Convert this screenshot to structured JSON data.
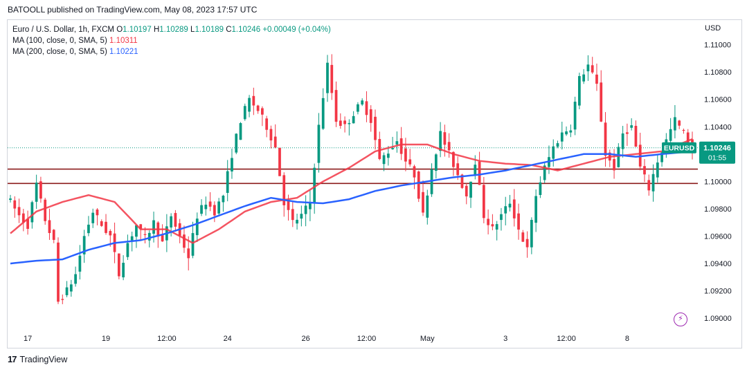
{
  "header": {
    "published_line": "BATOOLL published on TradingView.com, May 08, 2023 17:57 UTC"
  },
  "legend": {
    "symbol_line": "Euro / U.S. Dollar, 1h, FXCM",
    "o_label": "O",
    "o_value": "1.10197",
    "h_label": "H",
    "h_value": "1.10289",
    "l_label": "L",
    "l_value": "1.10189",
    "c_label": "C",
    "c_value": "1.10246",
    "change": "+0.00049 (+0.04%)",
    "ma100_label": "MA (100, close, 0, SMA, 5)",
    "ma100_value": "1.10311",
    "ma200_label": "MA (200, close, 0, SMA, 5)",
    "ma200_value": "1.10221"
  },
  "footer": {
    "brand": "TradingView",
    "logo_text": "17"
  },
  "colors": {
    "up": "#089981",
    "down": "#f23645",
    "ma100": "#f23645",
    "ma200": "#2962ff",
    "level": "#8b1a1a",
    "price_tag": "#089981",
    "symbol_tag": "#089981"
  },
  "chart_data": {
    "type": "candlestick",
    "currency": "USD",
    "ylim": [
      1.0892,
      1.1118
    ],
    "y_ticks": [
      "1.11000",
      "1.10800",
      "1.10600",
      "1.10400",
      "1.10200",
      "1.10000",
      "1.09800",
      "1.09600",
      "1.09400",
      "1.09200",
      "1.09000"
    ],
    "x_ticks": [
      "17",
      "19",
      "12:00",
      "24",
      "26",
      "12:00",
      "May",
      "3",
      "12:00",
      "8"
    ],
    "current_price": "1.10246",
    "countdown": "01:55",
    "symbol_tag": "EURUSD",
    "horizontal_levels": [
      1.1009,
      1.09985
    ],
    "series_price_anchors": [
      [
        0,
        1.0985
      ],
      [
        2,
        1.0975
      ],
      [
        4,
        1.0968
      ],
      [
        6,
        1.0998
      ],
      [
        8,
        1.0972
      ],
      [
        10,
        1.0955
      ],
      [
        11,
        1.0912
      ],
      [
        13,
        1.092
      ],
      [
        15,
        1.0932
      ],
      [
        17,
        1.096
      ],
      [
        19,
        1.0978
      ],
      [
        21,
        1.0968
      ],
      [
        23,
        1.096
      ],
      [
        25,
        1.0932
      ],
      [
        27,
        1.0955
      ],
      [
        29,
        1.0968
      ],
      [
        31,
        1.0958
      ],
      [
        33,
        1.097
      ],
      [
        35,
        1.0955
      ],
      [
        37,
        1.0975
      ],
      [
        39,
        1.096
      ],
      [
        41,
        1.0945
      ],
      [
        43,
        1.0975
      ],
      [
        45,
        1.0985
      ],
      [
        47,
        1.0978
      ],
      [
        49,
        1.099
      ],
      [
        51,
        1.102
      ],
      [
        53,
        1.1045
      ],
      [
        55,
        1.106
      ],
      [
        57,
        1.1052
      ],
      [
        59,
        1.104
      ],
      [
        61,
        1.1025
      ],
      [
        63,
        1.0985
      ],
      [
        65,
        1.097
      ],
      [
        67,
        1.0975
      ],
      [
        69,
        1.0985
      ],
      [
        71,
        1.104
      ],
      [
        73,
        1.1085
      ],
      [
        75,
        1.1045
      ],
      [
        77,
        1.104
      ],
      [
        79,
        1.105
      ],
      [
        81,
        1.1058
      ],
      [
        83,
        1.1045
      ],
      [
        85,
        1.1015
      ],
      [
        87,
        1.1022
      ],
      [
        89,
        1.103
      ],
      [
        91,
        1.1015
      ],
      [
        93,
        1.1005
      ],
      [
        95,
        1.0975
      ],
      [
        97,
        1.101
      ],
      [
        99,
        1.1035
      ],
      [
        101,
        1.102
      ],
      [
        103,
        1.1005
      ],
      [
        105,
        1.099
      ],
      [
        107,
        1.1015
      ],
      [
        109,
        1.0975
      ],
      [
        111,
        1.0965
      ],
      [
        113,
        1.0975
      ],
      [
        115,
        1.0985
      ],
      [
        117,
        1.0965
      ],
      [
        119,
        1.095
      ],
      [
        121,
        1.099
      ],
      [
        123,
        1.101
      ],
      [
        125,
        1.1025
      ],
      [
        127,
        1.1035
      ],
      [
        129,
        1.104
      ],
      [
        131,
        1.1075
      ],
      [
        133,
        1.1085
      ],
      [
        135,
        1.107
      ],
      [
        137,
        1.102
      ],
      [
        139,
        1.101
      ],
      [
        141,
        1.1035
      ],
      [
        143,
        1.104
      ],
      [
        145,
        1.101
      ],
      [
        147,
        1.0995
      ],
      [
        149,
        1.1015
      ],
      [
        151,
        1.103
      ],
      [
        153,
        1.1045
      ],
      [
        155,
        1.1035
      ],
      [
        157,
        1.1024
      ]
    ],
    "ma100_anchors": [
      [
        0,
        1.0962
      ],
      [
        6,
        1.0978
      ],
      [
        12,
        1.0985
      ],
      [
        18,
        1.099
      ],
      [
        24,
        1.0985
      ],
      [
        30,
        1.0965
      ],
      [
        36,
        1.0965
      ],
      [
        42,
        1.0955
      ],
      [
        48,
        1.0965
      ],
      [
        54,
        1.0978
      ],
      [
        60,
        1.0985
      ],
      [
        66,
        1.0988
      ],
      [
        72,
        1.1
      ],
      [
        78,
        1.101
      ],
      [
        84,
        1.1022
      ],
      [
        90,
        1.1027
      ],
      [
        96,
        1.1027
      ],
      [
        102,
        1.102
      ],
      [
        108,
        1.1015
      ],
      [
        114,
        1.1013
      ],
      [
        120,
        1.1012
      ],
      [
        126,
        1.1008
      ],
      [
        132,
        1.1013
      ],
      [
        138,
        1.1018
      ],
      [
        144,
        1.102
      ],
      [
        150,
        1.1022
      ],
      [
        157,
        1.1031
      ]
    ],
    "ma200_anchors": [
      [
        0,
        1.094
      ],
      [
        6,
        1.0942
      ],
      [
        12,
        1.0943
      ],
      [
        18,
        1.095
      ],
      [
        24,
        1.0955
      ],
      [
        30,
        1.0957
      ],
      [
        36,
        1.0962
      ],
      [
        42,
        1.0968
      ],
      [
        48,
        1.0975
      ],
      [
        54,
        1.0982
      ],
      [
        60,
        1.0988
      ],
      [
        66,
        1.0985
      ],
      [
        72,
        1.0984
      ],
      [
        78,
        1.0987
      ],
      [
        84,
        1.0993
      ],
      [
        90,
        1.0997
      ],
      [
        96,
        1.1
      ],
      [
        102,
        1.1003
      ],
      [
        108,
        1.1005
      ],
      [
        114,
        1.1008
      ],
      [
        120,
        1.1012
      ],
      [
        126,
        1.1016
      ],
      [
        132,
        1.102
      ],
      [
        138,
        1.102
      ],
      [
        144,
        1.1018
      ],
      [
        150,
        1.102
      ],
      [
        157,
        1.1022
      ]
    ]
  }
}
